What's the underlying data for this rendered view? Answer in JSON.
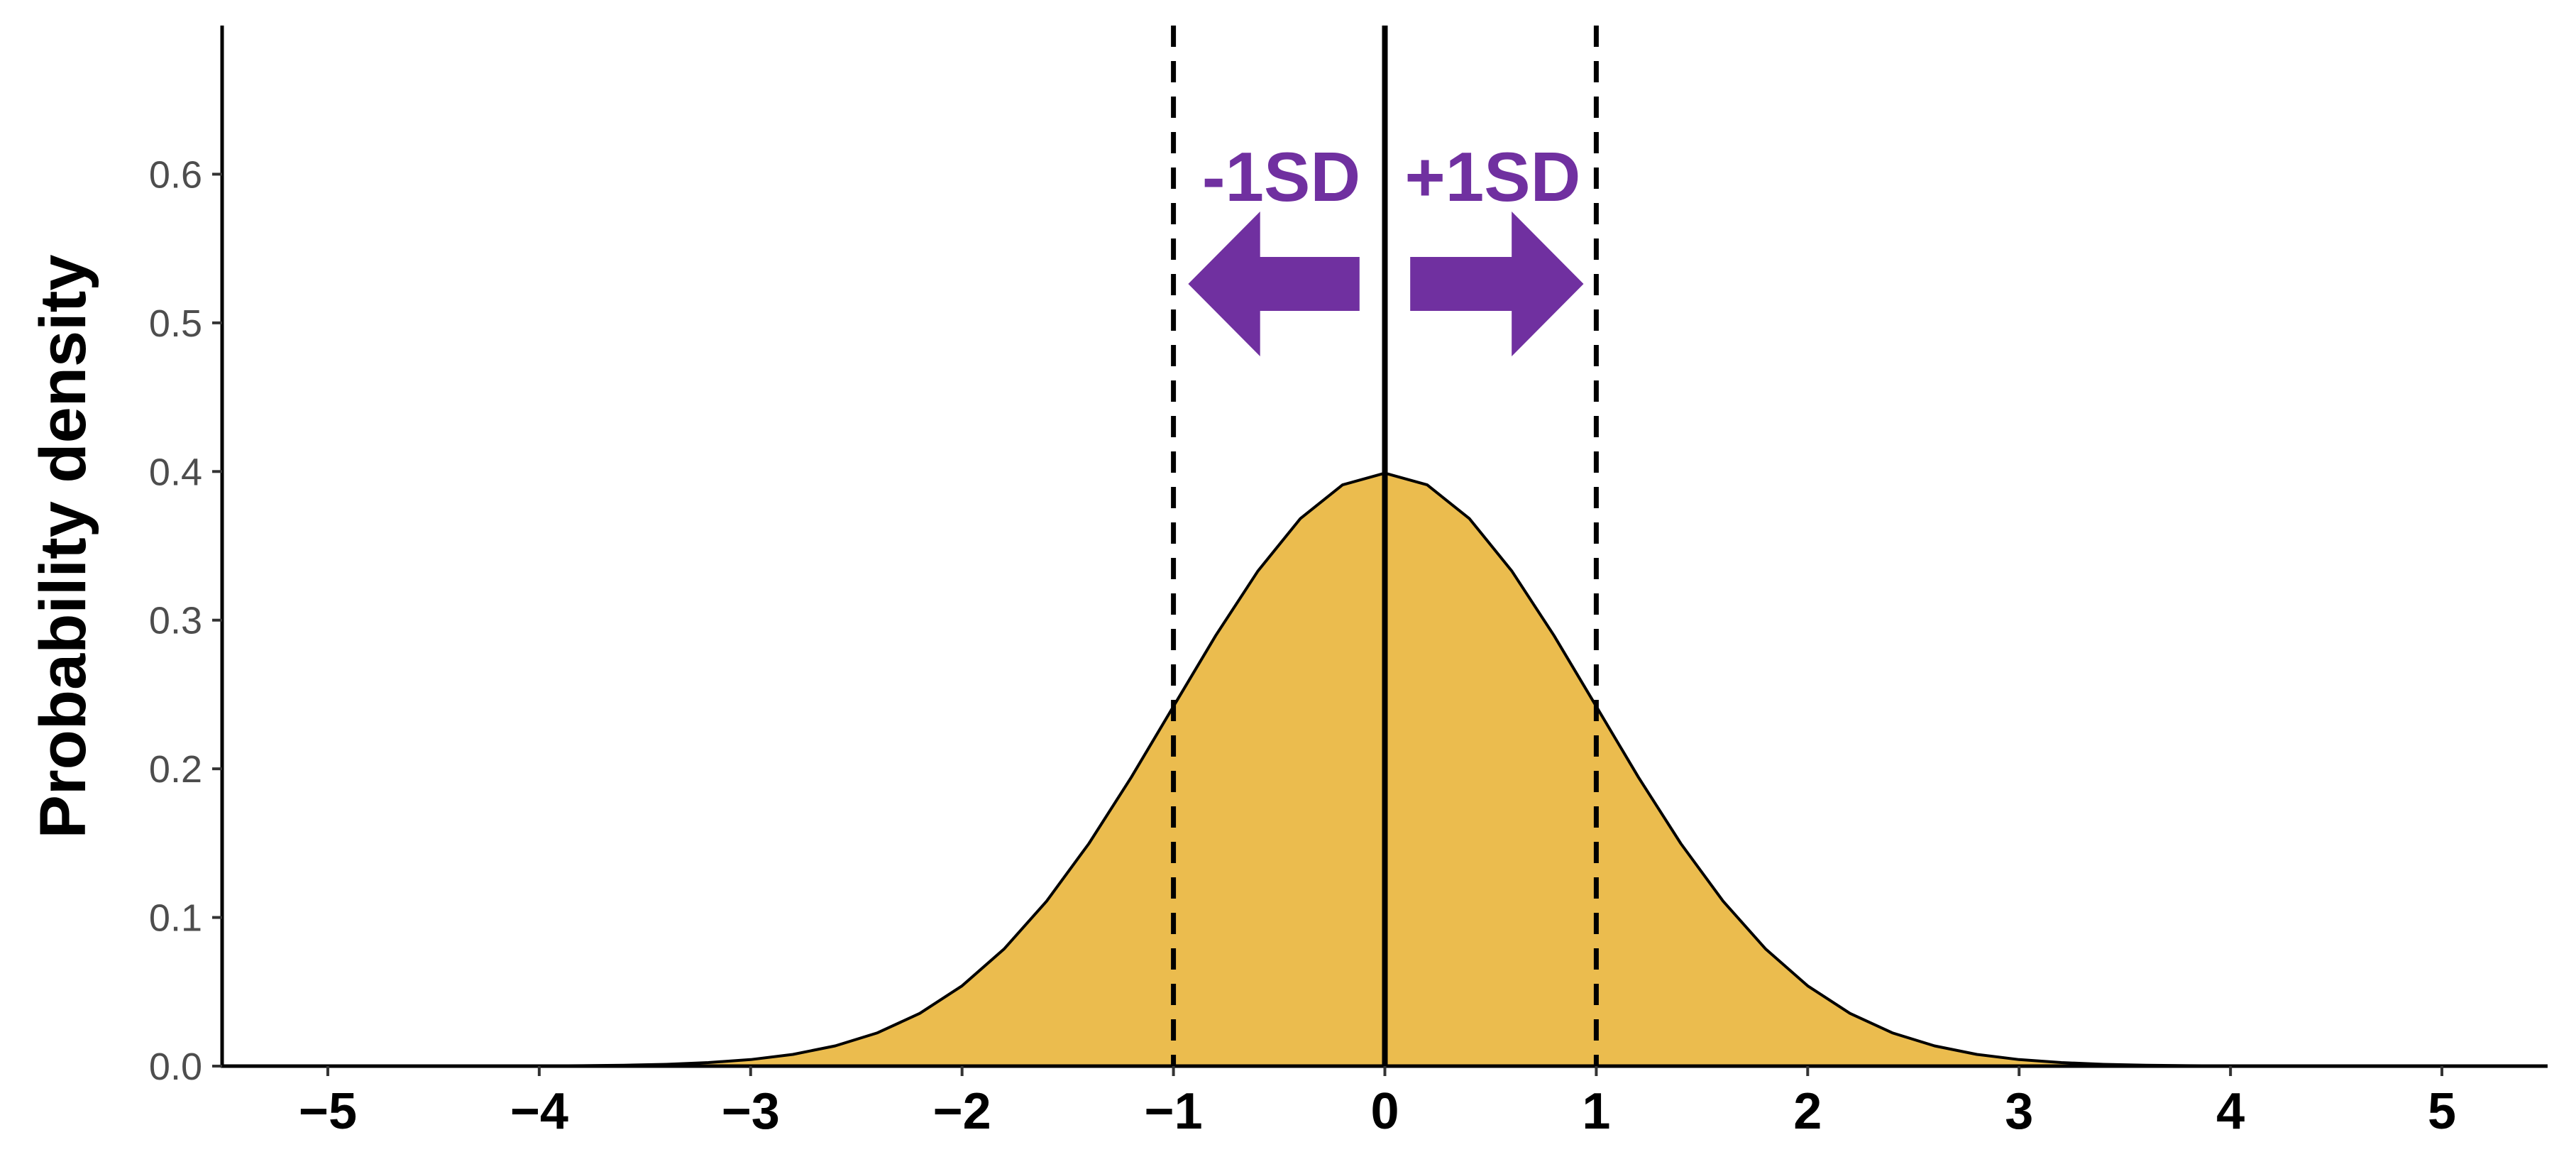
{
  "chart_data": {
    "type": "area",
    "title": "",
    "xlabel": "",
    "ylabel": "Probability density",
    "xlim": [
      -5.5,
      5.5
    ],
    "ylim": [
      0,
      0.7
    ],
    "x_ticks": [
      -5,
      -4,
      -3,
      -2,
      -1,
      0,
      1,
      2,
      3,
      4,
      5
    ],
    "x_tick_labels": [
      "−5",
      "−4",
      "−3",
      "−2",
      "−1",
      "0",
      "1",
      "2",
      "3",
      "4",
      "5"
    ],
    "y_ticks": [
      0.0,
      0.1,
      0.2,
      0.3,
      0.4,
      0.5,
      0.6
    ],
    "y_tick_labels": [
      "0.0",
      "0.1",
      "0.2",
      "0.3",
      "0.4",
      "0.5",
      "0.6"
    ],
    "grid": false,
    "series": [
      {
        "x": [
          -5.0,
          -4.8,
          -4.6,
          -4.4,
          -4.2,
          -4.0,
          -3.8,
          -3.6,
          -3.4,
          -3.2,
          -3.0,
          -2.8,
          -2.6,
          -2.4,
          -2.2,
          -2.0,
          -1.8,
          -1.6,
          -1.4,
          -1.2,
          -1.0,
          -0.8,
          -0.6,
          -0.4,
          -0.2,
          0.0,
          0.2,
          0.4,
          0.6,
          0.8,
          1.0,
          1.2,
          1.4,
          1.6,
          1.8,
          2.0,
          2.2,
          2.4,
          2.6,
          2.8,
          3.0,
          3.2,
          3.4,
          3.6,
          3.8,
          4.0,
          4.2,
          4.4,
          4.6,
          4.8,
          5.0
        ],
        "y": [
          0.0,
          0.0,
          0.0,
          0.0,
          0.0001,
          0.0001,
          0.0003,
          0.0006,
          0.0012,
          0.0024,
          0.0044,
          0.0079,
          0.0136,
          0.0224,
          0.0355,
          0.054,
          0.079,
          0.1109,
          0.1497,
          0.1942,
          0.242,
          0.2897,
          0.3332,
          0.3683,
          0.391,
          0.3989,
          0.391,
          0.3683,
          0.3332,
          0.2897,
          0.242,
          0.1942,
          0.1497,
          0.1109,
          0.079,
          0.054,
          0.0355,
          0.0224,
          0.0136,
          0.0079,
          0.0044,
          0.0024,
          0.0012,
          0.0006,
          0.0003,
          0.0001,
          0.0001,
          0.0,
          0.0,
          0.0,
          0.0
        ],
        "fill_color": "#ebbc4e",
        "line_color": "#000000"
      }
    ],
    "reference_lines": [
      {
        "x": -1,
        "style": "dashed",
        "color": "#000000"
      },
      {
        "x": 0,
        "style": "solid",
        "color": "#000000"
      },
      {
        "x": 1,
        "style": "dashed",
        "color": "#000000"
      }
    ],
    "annotations": [
      {
        "text": "-1SD",
        "direction": "left",
        "color": "#7030a0"
      },
      {
        "text": "+1SD",
        "direction": "right",
        "color": "#7030a0"
      }
    ]
  }
}
